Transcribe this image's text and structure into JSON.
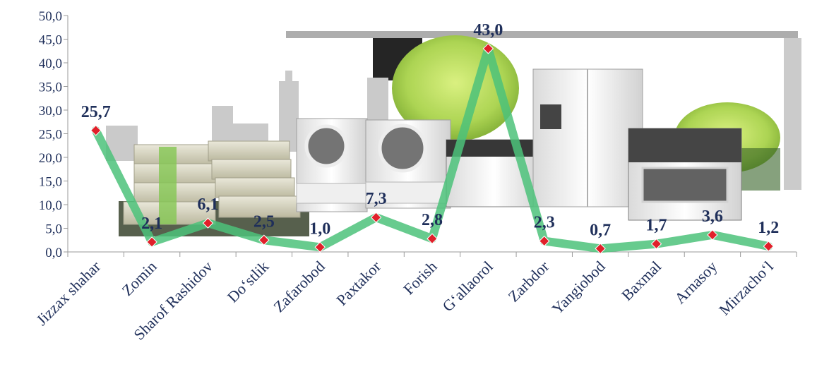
{
  "chart_data": {
    "type": "line",
    "categories": [
      "Jizzax shahar",
      "Zomin",
      "Sharof Rashidov",
      "Do‘stlik",
      "Zafarobod",
      "Paxtakor",
      "Forish",
      "G‘allaorol",
      "Zarbdor",
      "Yangiobod",
      "Baxmal",
      "Arnasoy",
      "Mirzacho‘l"
    ],
    "values": [
      25.7,
      2.1,
      6.1,
      2.5,
      1.0,
      7.3,
      2.8,
      43.0,
      2.3,
      0.7,
      1.7,
      3.6,
      1.2
    ],
    "value_labels": [
      "25,7",
      "2,1",
      "6,1",
      "2,5",
      "1,0",
      "7,3",
      "2,8",
      "43,0",
      "2,3",
      "0,7",
      "1,7",
      "3,6",
      "1,2"
    ],
    "yticks": [
      0,
      5,
      10,
      15,
      20,
      25,
      30,
      35,
      40,
      45,
      50
    ],
    "ytick_labels": [
      "0,0",
      "5,0",
      "10,0",
      "15,0",
      "20,0",
      "25,0",
      "30,0",
      "35,0",
      "40,0",
      "45,0",
      "50,0"
    ],
    "ylim": [
      0,
      50
    ],
    "grid": false,
    "legend": "none",
    "colors": {
      "line": "#4cc27a",
      "marker": "#e0202a",
      "text": "#1f2f5a",
      "axis": "#9a9a9a"
    }
  }
}
